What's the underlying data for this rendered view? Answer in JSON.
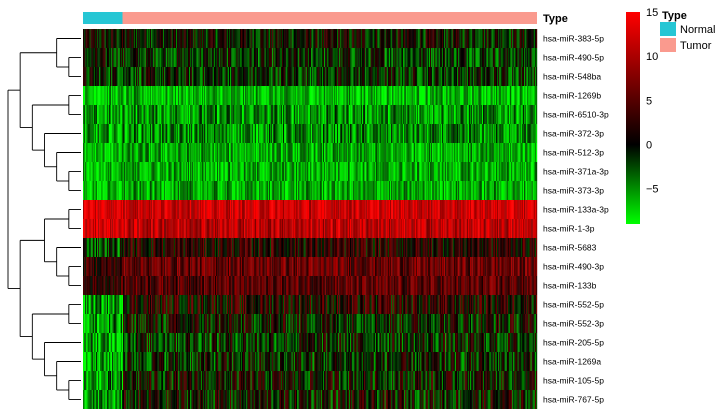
{
  "chart_data": {
    "type": "heatmap",
    "annotation": {
      "title": "Type",
      "groups": [
        {
          "name": "Normal",
          "color": "#26C6D4",
          "fraction": 0.087
        },
        {
          "name": "Tumor",
          "color": "#FA9A8E",
          "fraction": 0.913
        }
      ]
    },
    "rows": [
      {
        "name": "hsa-miR-383-5p",
        "mean": 0,
        "spread": 3.5
      },
      {
        "name": "hsa-miR-490-5p",
        "mean": -1.5,
        "spread": 3.5
      },
      {
        "name": "hsa-miR-548ba",
        "mean": -1.2,
        "spread": 3.5
      },
      {
        "name": "hsa-miR-1269b",
        "mean": -6.5,
        "spread": 2.5
      },
      {
        "name": "hsa-miR-6510-3p",
        "mean": -5,
        "spread": 3
      },
      {
        "name": "hsa-miR-372-3p",
        "mean": -5,
        "spread": 3
      },
      {
        "name": "hsa-miR-512-3p",
        "mean": -6,
        "spread": 2.5
      },
      {
        "name": "hsa-miR-371a-3p",
        "mean": -6,
        "spread": 2.5
      },
      {
        "name": "hsa-miR-373-3p",
        "mean": -6,
        "spread": 2.5
      },
      {
        "name": "hsa-miR-133a-3p",
        "mean": 12,
        "spread": 2.5
      },
      {
        "name": "hsa-miR-1-3p",
        "mean": 11,
        "spread": 3
      },
      {
        "name": "hsa-miR-5683",
        "mean": 2,
        "spread": 3.5
      },
      {
        "name": "hsa-miR-490-3p",
        "mean": 6,
        "spread": 3
      },
      {
        "name": "hsa-miR-133b",
        "mean": 5,
        "spread": 3
      },
      {
        "name": "hsa-miR-552-5p",
        "mean": 2,
        "spread": 4
      },
      {
        "name": "hsa-miR-552-3p",
        "mean": 0,
        "spread": 4
      },
      {
        "name": "hsa-miR-205-5p",
        "mean": -1,
        "spread": 4
      },
      {
        "name": "hsa-miR-1269a",
        "mean": -1,
        "spread": 4
      },
      {
        "name": "hsa-miR-105-5p",
        "mean": 0,
        "spread": 4
      },
      {
        "name": "hsa-miR-767-5p",
        "mean": 0,
        "spread": 4
      }
    ],
    "normal_row_means": [
      0,
      -1,
      -1,
      -7,
      -6,
      -6,
      -7,
      -7,
      -7,
      13,
      13,
      -2,
      3,
      3,
      -6,
      -6,
      -6,
      -6,
      -6,
      -6
    ],
    "colorbar": {
      "range": [
        -9,
        15
      ],
      "ticks": [
        15,
        10,
        5,
        0,
        -5
      ],
      "tick_labels": [
        "15",
        "10",
        "5",
        "0",
        "−5"
      ],
      "colors": [
        "#00FF00",
        "#000000",
        "#FF0000"
      ]
    },
    "legend": {
      "title": "Type",
      "items": [
        {
          "name": "Normal",
          "color": "#26C6D4"
        },
        {
          "name": "Tumor",
          "color": "#FA9A8E"
        }
      ]
    },
    "dendrogram": [
      [
        [
          0,
          [
            1,
            2
          ]
        ],
        [
          [
            3,
            4
          ],
          [
            5,
            [
              6,
              [
                7,
                8
              ]
            ]
          ]
        ]
      ],
      [
        [
          [
            9,
            10
          ],
          [
            11,
            [
              12,
              13
            ]
          ]
        ],
        [
          [
            14,
            15
          ],
          [
            16,
            [
              17,
              [
                18,
                19
              ]
            ]
          ]
        ]
      ]
    ],
    "legend_placement": "right",
    "grid": false
  }
}
